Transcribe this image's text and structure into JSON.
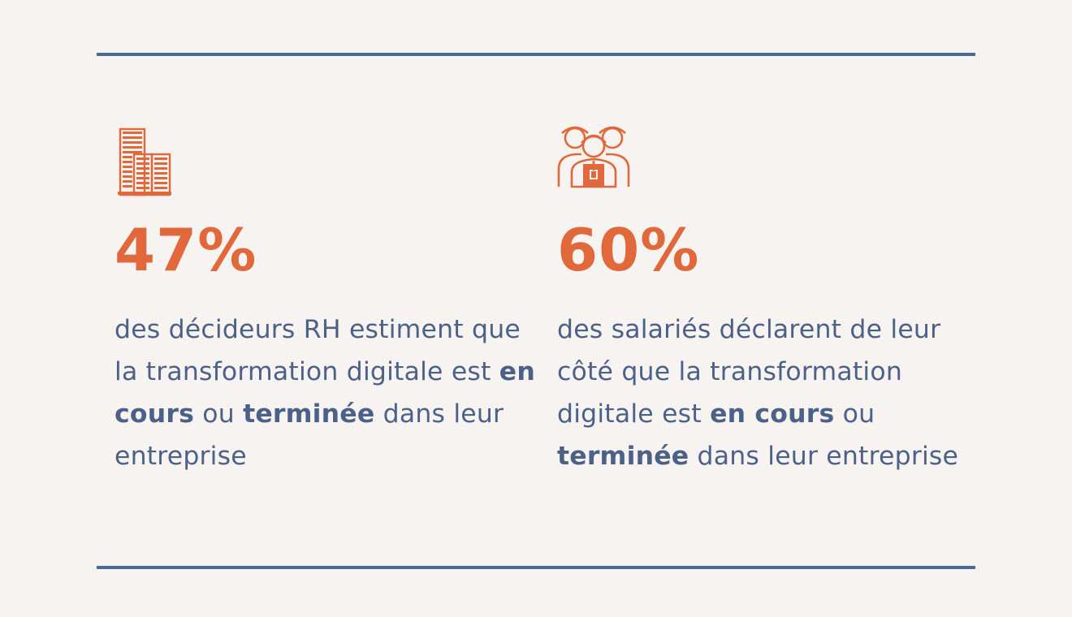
{
  "stats": [
    {
      "icon": "office-buildings-icon",
      "percent": "47%",
      "text": {
        "part1": "des décideurs RH estiment que la transformation digitale est ",
        "bold1": "en cours",
        "part2": " ou ",
        "bold2": "terminée",
        "part3": " dans leur entreprise"
      }
    },
    {
      "icon": "employees-group-icon",
      "percent": "60%",
      "text": {
        "part1": "des salariés déclarent de leur côté que la transformation digitale est ",
        "bold1": "en cours",
        "part2": " ou ",
        "bold2": "terminée",
        "part3": " dans leur entreprise"
      }
    }
  ],
  "colors": {
    "accent": "#e0683a",
    "text": "#4b6188",
    "rule": "#4a6a96",
    "background": "#f6f3f1"
  }
}
